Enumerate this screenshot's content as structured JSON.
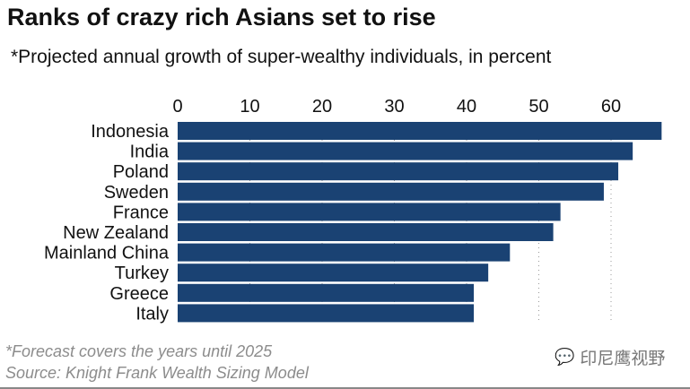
{
  "chart_data": {
    "type": "bar",
    "orientation": "horizontal",
    "title": "Ranks of crazy rich Asians set to rise",
    "subtitle": "*Projected annual growth of super-wealthy individuals, in percent",
    "categories": [
      "Indonesia",
      "India",
      "Poland",
      "Sweden",
      "France",
      "New Zealand",
      "Mainland China",
      "Turkey",
      "Greece",
      "Italy"
    ],
    "values": [
      67,
      63,
      61,
      59,
      53,
      52,
      46,
      43,
      41,
      41
    ],
    "xlim": [
      0,
      67
    ],
    "xticks": [
      "0",
      "10",
      "20",
      "30",
      "40",
      "50",
      "60"
    ],
    "axis_position": "top",
    "grid": "vertical dotted",
    "bar_color": "#1a4273",
    "notes": [
      "*Forecast covers the years until 2025",
      "Source: Knight Frank Wealth Sizing Model"
    ]
  },
  "watermark": "印尼鹰视野"
}
